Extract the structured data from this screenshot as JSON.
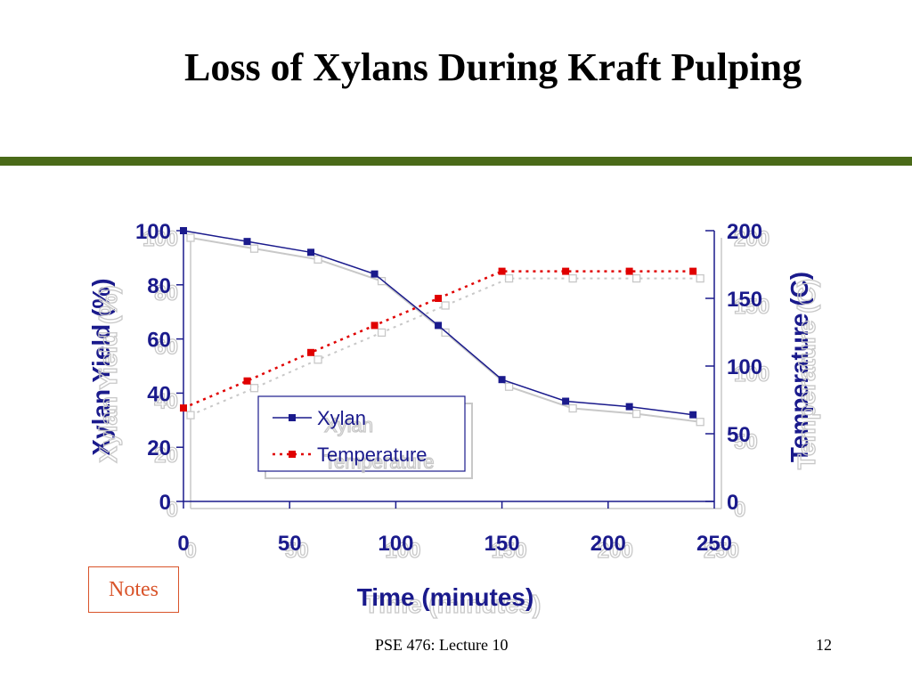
{
  "slide": {
    "title": "Loss of Xylans During Kraft Pulping",
    "notes_label": "Notes",
    "footer": "PSE 476: Lecture 10",
    "page_number": "12",
    "rule_color": "#4a6a18"
  },
  "chart_data": {
    "type": "line",
    "title": "",
    "xlabel": "Time (minutes)",
    "ylabel": "Xylan Yield (%)",
    "y2label": "Temperature (C)",
    "xlim": [
      0,
      250
    ],
    "ylim": [
      0,
      100
    ],
    "y2lim": [
      0,
      200
    ],
    "x_ticks": [
      "0",
      "50",
      "100",
      "150",
      "200",
      "250"
    ],
    "y_ticks": [
      "0",
      "20",
      "40",
      "60",
      "80",
      "100"
    ],
    "y2_ticks": [
      "0",
      "50",
      "100",
      "150",
      "200"
    ],
    "grid": false,
    "legend_position": "lower-center",
    "series": [
      {
        "name": "Xylan",
        "axis": "left",
        "color": "#1a1a8c",
        "line_style": "solid",
        "x": [
          0,
          30,
          60,
          90,
          120,
          150,
          180,
          210,
          240
        ],
        "y": [
          100,
          96,
          92,
          84,
          65,
          45,
          37,
          35,
          32
        ]
      },
      {
        "name": "Temperature",
        "axis": "right",
        "color": "#e00000",
        "line_style": "dotted",
        "x": [
          0,
          30,
          60,
          90,
          120,
          150,
          180,
          210,
          240
        ],
        "y": [
          69,
          89,
          110,
          130,
          150,
          170,
          170,
          170,
          170
        ]
      }
    ]
  }
}
